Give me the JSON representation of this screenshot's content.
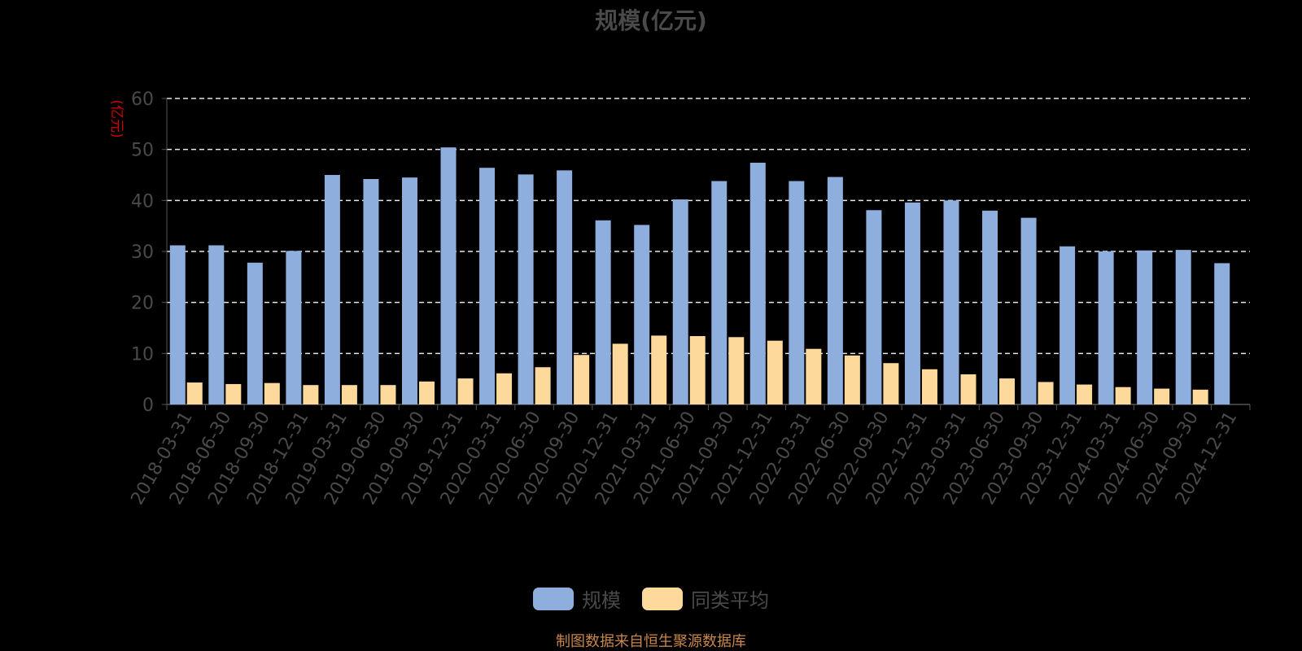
{
  "chart_data": {
    "type": "bar",
    "title": "规模(亿元)",
    "ylabel": "(亿元)",
    "ylim": [
      0,
      60
    ],
    "yticks": [
      0,
      10,
      20,
      30,
      40,
      50,
      60
    ],
    "grid": true,
    "legend_position": "bottom",
    "categories": [
      "2018-03-31",
      "2018-06-30",
      "2018-09-30",
      "2018-12-31",
      "2019-03-31",
      "2019-06-30",
      "2019-09-30",
      "2019-12-31",
      "2020-03-31",
      "2020-06-30",
      "2020-09-30",
      "2020-12-31",
      "2021-03-31",
      "2021-06-30",
      "2021-09-30",
      "2021-12-31",
      "2022-03-31",
      "2022-06-30",
      "2022-09-30",
      "2022-12-31",
      "2023-03-31",
      "2023-06-30",
      "2023-09-30",
      "2023-12-31",
      "2024-03-31",
      "2024-06-30",
      "2024-09-30",
      "2024-12-31"
    ],
    "series": [
      {
        "name": "规模",
        "color": "#8eaedd",
        "values": [
          31.2,
          31.2,
          27.8,
          30.1,
          45.0,
          44.2,
          44.5,
          50.4,
          46.4,
          45.1,
          45.9,
          36.1,
          35.2,
          40.2,
          43.8,
          47.4,
          43.8,
          44.6,
          38.1,
          39.6,
          40.0,
          38.0,
          36.6,
          31.0,
          30.0,
          30.2,
          30.3,
          27.7
        ]
      },
      {
        "name": "同类平均",
        "color": "#fdd99b",
        "values": [
          4.3,
          4.0,
          4.2,
          3.8,
          3.8,
          3.8,
          4.5,
          5.1,
          6.1,
          7.3,
          9.7,
          11.9,
          13.5,
          13.4,
          13.2,
          12.5,
          10.9,
          9.6,
          8.1,
          6.9,
          5.9,
          5.1,
          4.4,
          3.9,
          3.4,
          3.1,
          2.9,
          null
        ]
      }
    ]
  },
  "source_note": "制图数据来自恒生聚源数据库"
}
